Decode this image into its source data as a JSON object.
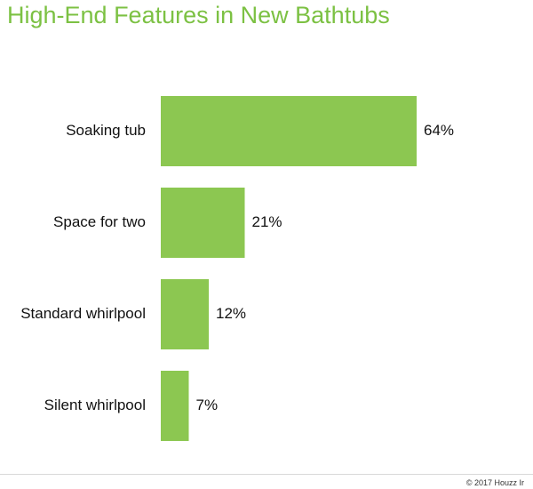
{
  "colors": {
    "title": "#7cc143",
    "bar": "#8cc751",
    "text": "#111111"
  },
  "chart_data": {
    "type": "bar",
    "orientation": "horizontal",
    "title": "High-End Features in New Bathtubs",
    "categories": [
      "Soaking tub",
      "Space for two",
      "Standard whirlpool",
      "Silent whirlpool"
    ],
    "values": [
      64,
      21,
      12,
      7
    ],
    "value_labels": [
      "64%",
      "21%",
      "12%",
      "7%"
    ],
    "xlabel": "",
    "ylabel": "",
    "xlim": [
      0,
      100
    ],
    "grid": false,
    "legend": "none"
  },
  "footer": {
    "copyright": "© 2017 Houzz Ir"
  }
}
